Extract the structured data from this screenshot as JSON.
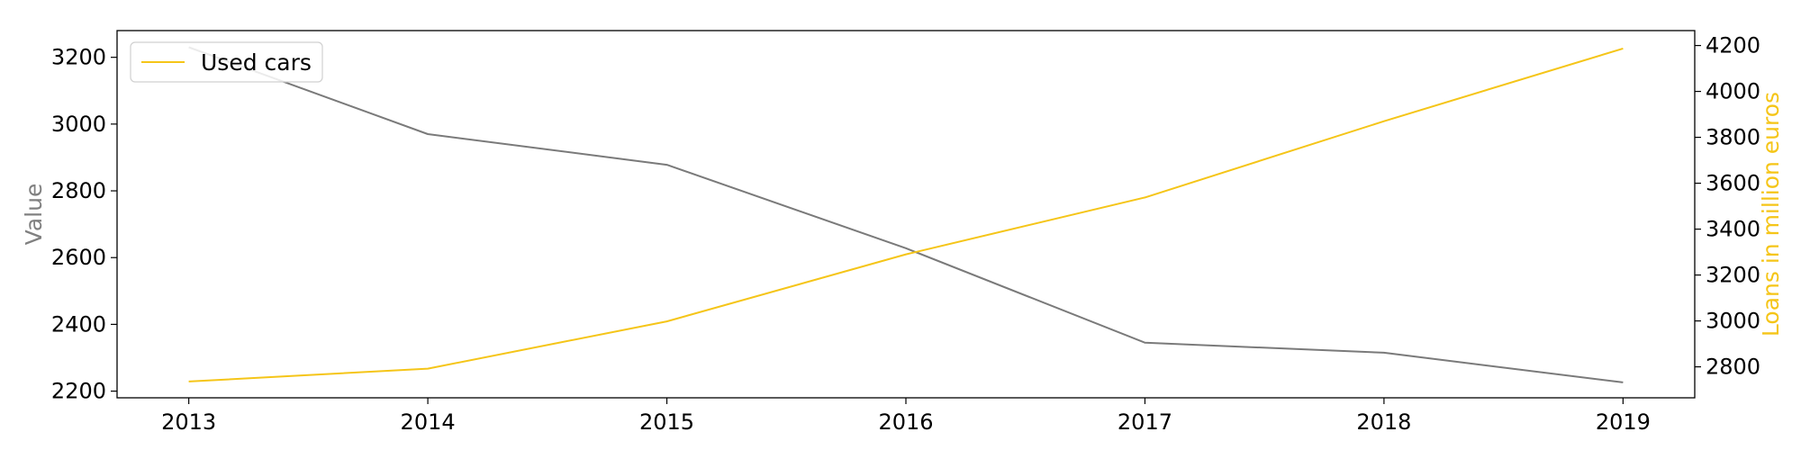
{
  "chart_data": {
    "type": "line",
    "x": [
      2013,
      2014,
      2015,
      2016,
      2017,
      2018,
      2019
    ],
    "xticks": [
      "2013",
      "2014",
      "2015",
      "2016",
      "2017",
      "2018",
      "2019"
    ],
    "series": [
      {
        "name": "",
        "axis": "left",
        "color": "#7a7a7a",
        "values": [
          3230,
          2970,
          2878,
          2628,
          2345,
          2315,
          2226
        ]
      },
      {
        "name": "Used cars",
        "axis": "right",
        "color": "#f5c518",
        "values": [
          2736,
          2792,
          2998,
          3290,
          3538,
          3870,
          4187
        ]
      }
    ],
    "ylabel_left": "Value",
    "ylabel_right": "Loans in million euros",
    "ylim_left": [
      2180,
      3280
    ],
    "ylim_right": [
      2665,
      4265
    ],
    "yticks_left": [
      2200,
      2400,
      2600,
      2800,
      3000,
      3200
    ],
    "yticks_right": [
      2800,
      3000,
      3200,
      3400,
      3600,
      3800,
      4000,
      4200
    ],
    "xlim": [
      2012.7,
      2019.3
    ],
    "grid": false,
    "legend": {
      "placement": "top-left",
      "entries": [
        "Used cars"
      ]
    },
    "colors": {
      "left_axis_label": "#808080",
      "right_axis_label": "#f5c518"
    }
  }
}
